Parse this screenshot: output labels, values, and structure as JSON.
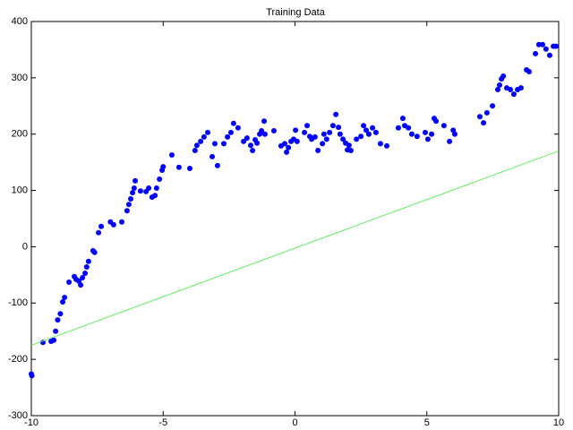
{
  "chart_data": {
    "type": "scatter",
    "title": "Training Data",
    "xlim": [
      -10,
      10
    ],
    "ylim": [
      -300,
      400
    ],
    "xticks": [
      -10,
      -5,
      0,
      5,
      10
    ],
    "yticks": [
      -300,
      -200,
      -100,
      0,
      100,
      200,
      300,
      400
    ],
    "series": [
      {
        "style": "points",
        "color": "#0000ff",
        "x": [
          -10,
          -9.98,
          -9.56,
          -9.25,
          -9.15,
          -9.08,
          -9,
          -8.9,
          -8.81,
          -8.74,
          -8.57,
          -8.37,
          -8.3,
          -8.2,
          -8.13,
          -8.06,
          -7.96,
          -7.9,
          -7.83,
          -7.66,
          -7.6,
          -7.45,
          -7.35,
          -7,
          -6.88,
          -6.57,
          -6.37,
          -6.3,
          -6.23,
          -6.16,
          -6.1,
          -6.06,
          -5.86,
          -5.65,
          -5.55,
          -5.42,
          -5.31,
          -5.25,
          -5.14,
          -5.04,
          -5,
          -4.67,
          -4.4,
          -3.99,
          -3.79,
          -3.72,
          -3.58,
          -3.45,
          -3.31,
          -3.14,
          -3.04,
          -2.94,
          -2.7,
          -2.56,
          -2.43,
          -2.33,
          -2.16,
          -1.95,
          -1.82,
          -1.68,
          -1.61,
          -1.51,
          -1.44,
          -1.34,
          -1.27,
          -1.17,
          -1.14,
          -0.8,
          -0.53,
          -0.39,
          -0.32,
          -0.25,
          -0.15,
          -0.05,
          0.02,
          0.08,
          0.36,
          0.46,
          0.56,
          0.63,
          0.76,
          0.87,
          1.04,
          1.1,
          1.2,
          1.31,
          1.44,
          1.55,
          1.65,
          1.71,
          1.82,
          1.92,
          1.99,
          2.05,
          2.12,
          2.33,
          2.5,
          2.6,
          2.7,
          2.8,
          2.94,
          3.07,
          3.24,
          3.48,
          3.92,
          4.09,
          4.16,
          4.3,
          4.43,
          4.63,
          4.94,
          5.04,
          5.18,
          5.28,
          5.35,
          5.65,
          5.86,
          6,
          6.06,
          7.01,
          7.15,
          7.28,
          7.49,
          7.69,
          7.76,
          7.83,
          7.9,
          8.03,
          8.17,
          8.3,
          8.44,
          8.57,
          8.78,
          8.88,
          9.12,
          9.25,
          9.39,
          9.52,
          9.66,
          9.8,
          9.9
        ],
        "values": [
          -226,
          -229,
          -170,
          -168,
          -166,
          -150,
          -130,
          -119,
          -98,
          -90,
          -63,
          -53,
          -58,
          -61,
          -68,
          -55,
          -47,
          -36,
          -26,
          -7,
          -10,
          25,
          36,
          44,
          39,
          44,
          64,
          75,
          85,
          96,
          104,
          117,
          99,
          98,
          104,
          88,
          91,
          104,
          120,
          136,
          142,
          163,
          141,
          139,
          171,
          180,
          187,
          195,
          203,
          160,
          183,
          144,
          183,
          195,
          203,
          219,
          211,
          187,
          193,
          180,
          171,
          190,
          184,
          200,
          206,
          223,
          200,
          206,
          179,
          183,
          168,
          176,
          187,
          191,
          207,
          187,
          203,
          215,
          196,
          191,
          195,
          171,
          183,
          200,
          191,
          203,
          215,
          235,
          212,
          200,
          191,
          184,
          172,
          180,
          171,
          191,
          196,
          215,
          207,
          200,
          211,
          203,
          183,
          179,
          211,
          228,
          215,
          211,
          200,
          196,
          203,
          191,
          200,
          228,
          223,
          215,
          187,
          207,
          200,
          231,
          220,
          238,
          250,
          279,
          287,
          298,
          303,
          282,
          279,
          271,
          279,
          282,
          314,
          311,
          343,
          359,
          359,
          351,
          340,
          356,
          356
        ]
      },
      {
        "style": "line",
        "color": "#66ee66",
        "x": [
          -10,
          10
        ],
        "values": [
          -175,
          170
        ]
      }
    ]
  }
}
